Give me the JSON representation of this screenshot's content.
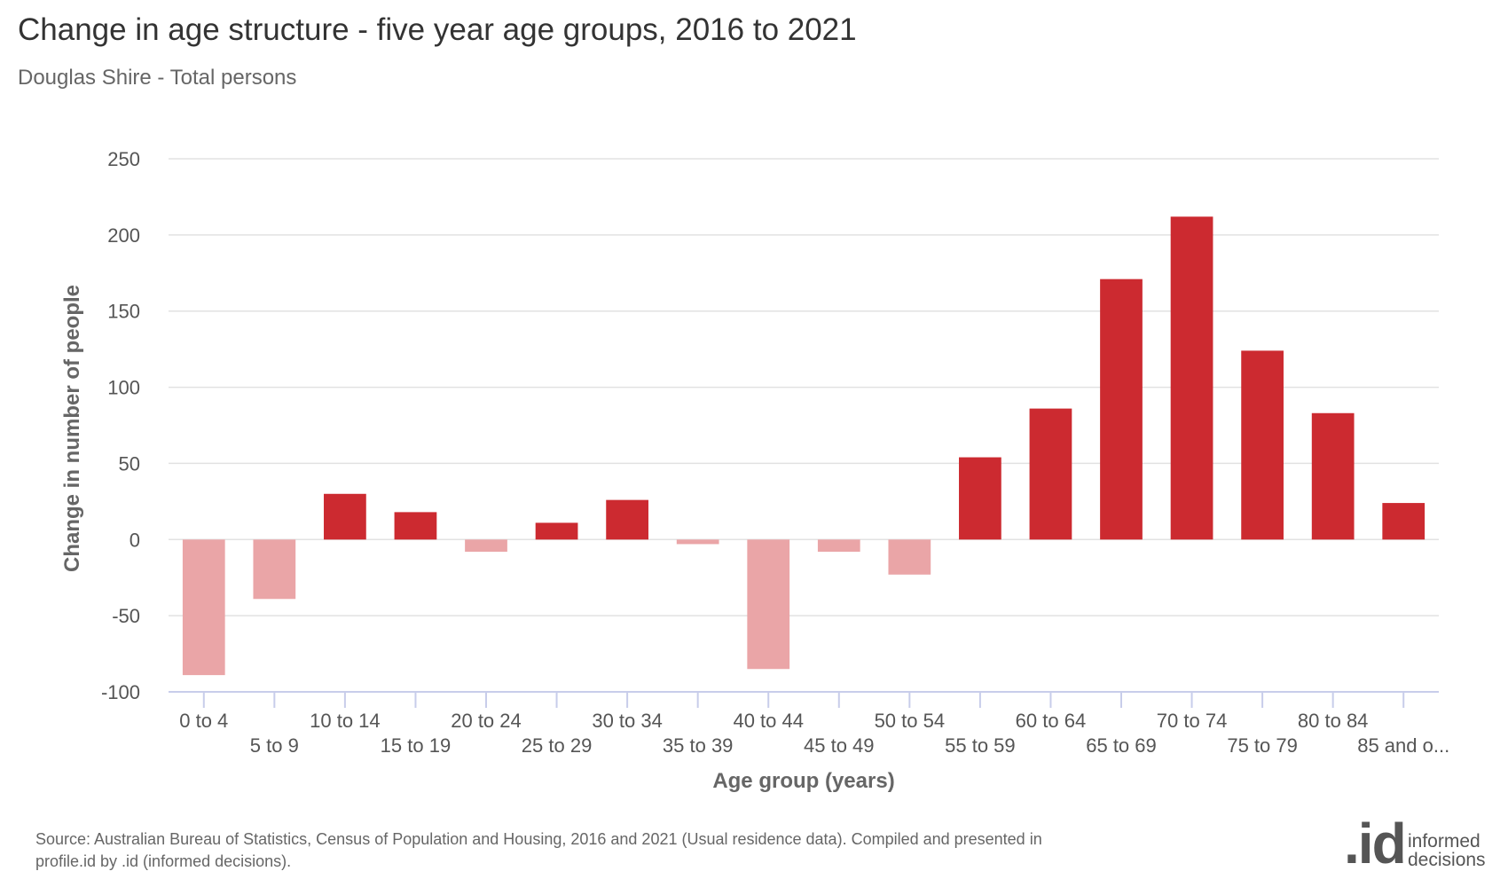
{
  "title": "Change in age structure - five year age groups, 2016 to 2021",
  "subtitle": "Douglas Shire - Total persons",
  "source": "Source: Australian Bureau of Statistics, Census of Population and Housing, 2016 and 2021 (Usual residence data). Compiled and presented in profile.id by .id (informed decisions).",
  "logo": {
    "mark": ".id",
    "line1": "informed",
    "line2": "decisions"
  },
  "colors": {
    "positive": "#cc2a30",
    "negative": "#eaa5a7",
    "grid": "#e2e2e2",
    "axis": "#c8cdea"
  },
  "chart_data": {
    "type": "bar",
    "xlabel": "Age group (years)",
    "ylabel": "Change in number of people",
    "ylim": [
      -100,
      250
    ],
    "yticks": [
      -100,
      -50,
      0,
      50,
      100,
      150,
      200,
      250
    ],
    "grid": true,
    "legend": "none",
    "categories": [
      "0 to 4",
      "5 to 9",
      "10 to 14",
      "15 to 19",
      "20 to 24",
      "25 to 29",
      "30 to 34",
      "35 to 39",
      "40 to 44",
      "45 to 49",
      "50 to 54",
      "55 to 59",
      "60 to 64",
      "65 to 69",
      "70 to 74",
      "75 to 79",
      "80 to 84",
      "85 and o..."
    ],
    "values": [
      -89,
      -39,
      30,
      18,
      -8,
      11,
      26,
      -3,
      -85,
      -8,
      -23,
      54,
      86,
      171,
      212,
      124,
      83,
      24
    ]
  }
}
